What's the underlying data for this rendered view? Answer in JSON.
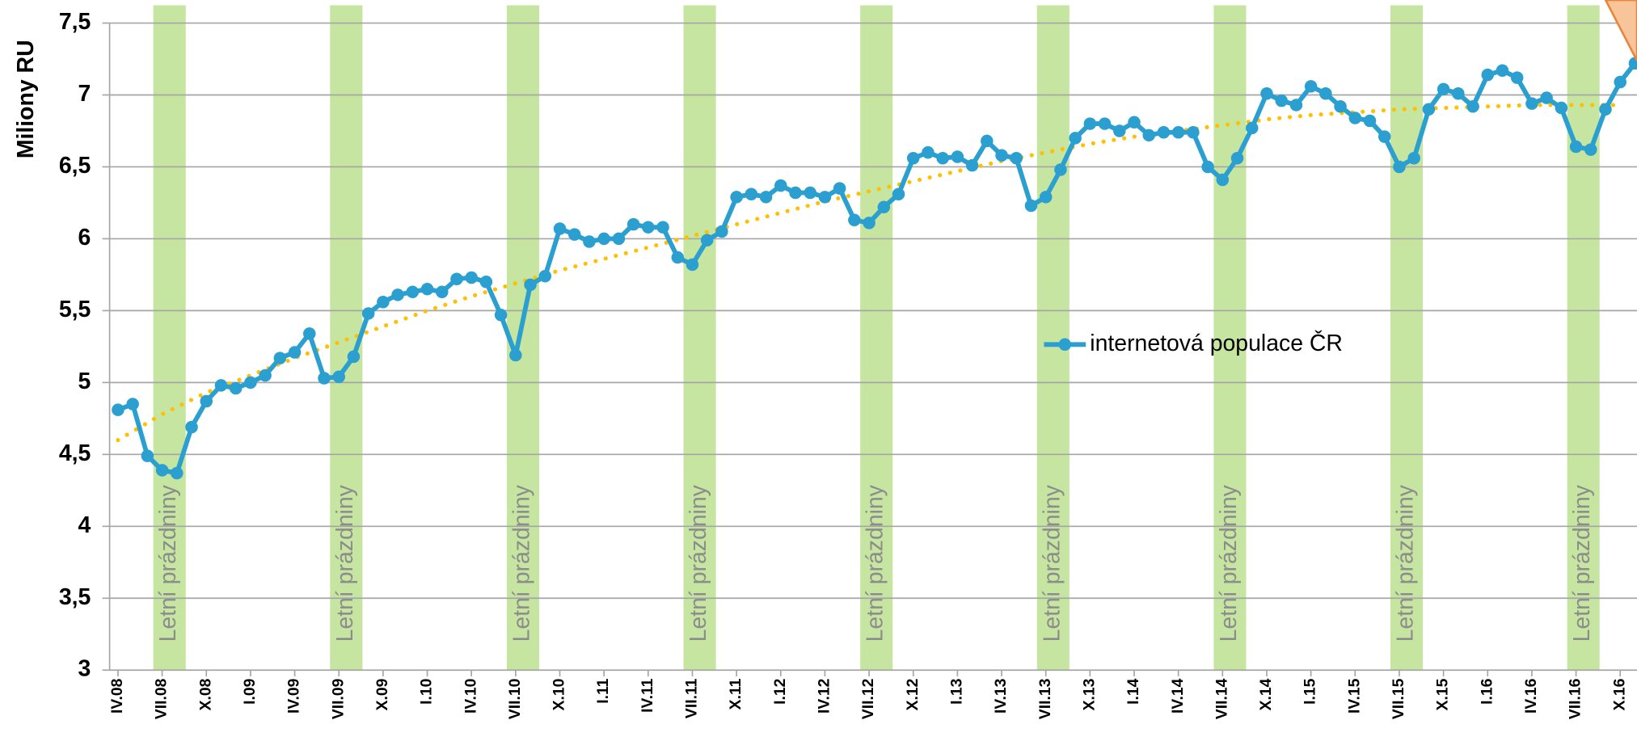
{
  "chart_data": {
    "type": "line",
    "y_label": "Miliony RU",
    "categories": [
      "IV.08",
      null,
      null,
      "VII.08",
      null,
      null,
      "X.08",
      null,
      null,
      "I.09",
      null,
      null,
      "IV.09",
      null,
      null,
      "VII.09",
      null,
      null,
      "X.09",
      null,
      null,
      "I.10",
      null,
      null,
      "IV.10",
      null,
      null,
      "VII.10",
      null,
      null,
      "X.10",
      null,
      null,
      "I.11",
      null,
      null,
      "IV.11",
      null,
      null,
      "VII.11",
      null,
      null,
      "X.11",
      null,
      null,
      "I.12",
      null,
      null,
      "IV.12",
      null,
      null,
      "VII.12",
      null,
      null,
      "X.12",
      null,
      null,
      "I.13",
      null,
      null,
      "IV.13",
      null,
      null,
      "VII.13",
      null,
      null,
      "X.13",
      null,
      null,
      "I.14",
      null,
      null,
      "IV.14",
      null,
      null,
      "VII.14",
      null,
      null,
      "X.14",
      null,
      null,
      "I.15",
      null,
      null,
      "IV.15",
      null,
      null,
      "VII.15",
      null,
      null,
      "X.15",
      null,
      null,
      "I.16",
      null,
      null,
      "IV.16",
      null,
      null,
      "VII.16",
      null,
      null,
      "X.16",
      null
    ],
    "series": [
      {
        "name": "internetová populace ČR",
        "color": "#2a9fd0",
        "values": [
          4.81,
          4.85,
          4.49,
          4.39,
          4.37,
          4.69,
          4.87,
          4.98,
          4.96,
          5.0,
          5.05,
          5.17,
          5.21,
          5.34,
          5.03,
          5.04,
          5.18,
          5.48,
          5.56,
          5.61,
          5.63,
          5.65,
          5.63,
          5.72,
          5.73,
          5.7,
          5.47,
          5.19,
          5.68,
          5.74,
          6.07,
          6.03,
          5.98,
          6.0,
          6.0,
          6.1,
          6.08,
          6.08,
          5.87,
          5.82,
          5.99,
          6.05,
          6.29,
          6.31,
          6.29,
          6.37,
          6.32,
          6.32,
          6.29,
          6.35,
          6.13,
          6.11,
          6.22,
          6.31,
          6.56,
          6.6,
          6.56,
          6.57,
          6.51,
          6.68,
          6.58,
          6.56,
          6.23,
          6.29,
          6.48,
          6.7,
          6.8,
          6.8,
          6.75,
          6.81,
          6.72,
          6.74,
          6.74,
          6.74,
          6.5,
          6.41,
          6.56,
          6.77,
          7.01,
          6.96,
          6.93,
          7.06,
          7.01,
          6.92,
          6.84,
          6.82,
          6.71,
          6.5,
          6.56,
          6.9,
          7.04,
          7.01,
          6.92,
          7.14,
          7.17,
          7.12,
          6.94,
          6.98,
          6.91,
          6.64,
          6.62,
          6.9,
          7.09,
          7.22
        ]
      }
    ],
    "trendline": {
      "color": "#ffc000",
      "categories": [
        "IV.08",
        "VII.08",
        "X.08",
        "I.09",
        "IV.09",
        "VII.09",
        "X.09",
        "I.10",
        "IV.10",
        "VII.10",
        "X.10",
        "I.11",
        "IV.11",
        "VII.11",
        "X.11",
        "I.12",
        "IV.12",
        "VII.12",
        "X.12",
        "I.13",
        "IV.13",
        "VII.13",
        "X.13",
        "I.14",
        "IV.14",
        "VII.14",
        "X.14",
        "I.15",
        "IV.15",
        "VII.15",
        "X.15",
        "I.16",
        "IV.16",
        "VII.16",
        "X.16"
      ],
      "values": [
        4.6,
        4.78,
        4.93,
        5.05,
        5.17,
        5.28,
        5.39,
        5.5,
        5.6,
        5.69,
        5.78,
        5.86,
        5.94,
        6.02,
        6.1,
        6.18,
        6.26,
        6.33,
        6.4,
        6.47,
        6.54,
        6.6,
        6.66,
        6.71,
        6.75,
        6.79,
        6.83,
        6.86,
        6.88,
        6.9,
        6.91,
        6.92,
        6.93,
        6.93,
        6.93
      ]
    },
    "summer_bands": {
      "label": "Letní prázdniny",
      "color": "#c6e5a0",
      "starts": [
        "VII.08",
        "VII.09",
        "VII.10",
        "VII.11",
        "VII.12",
        "VII.13",
        "VII.14",
        "VII.15",
        "VII.16"
      ]
    },
    "ylim": [
      3,
      7.5
    ],
    "yticks": [
      3,
      {
        "value": 3.5,
        "label": "3,5"
      },
      4,
      {
        "value": 4.5,
        "label": "4,5"
      },
      5,
      {
        "value": 5.5,
        "label": "5,5"
      },
      6,
      {
        "value": 6.5,
        "label": "6,5"
      },
      7,
      {
        "value": 7.5,
        "label": "7,5"
      }
    ],
    "grid": true,
    "legend": "center"
  }
}
